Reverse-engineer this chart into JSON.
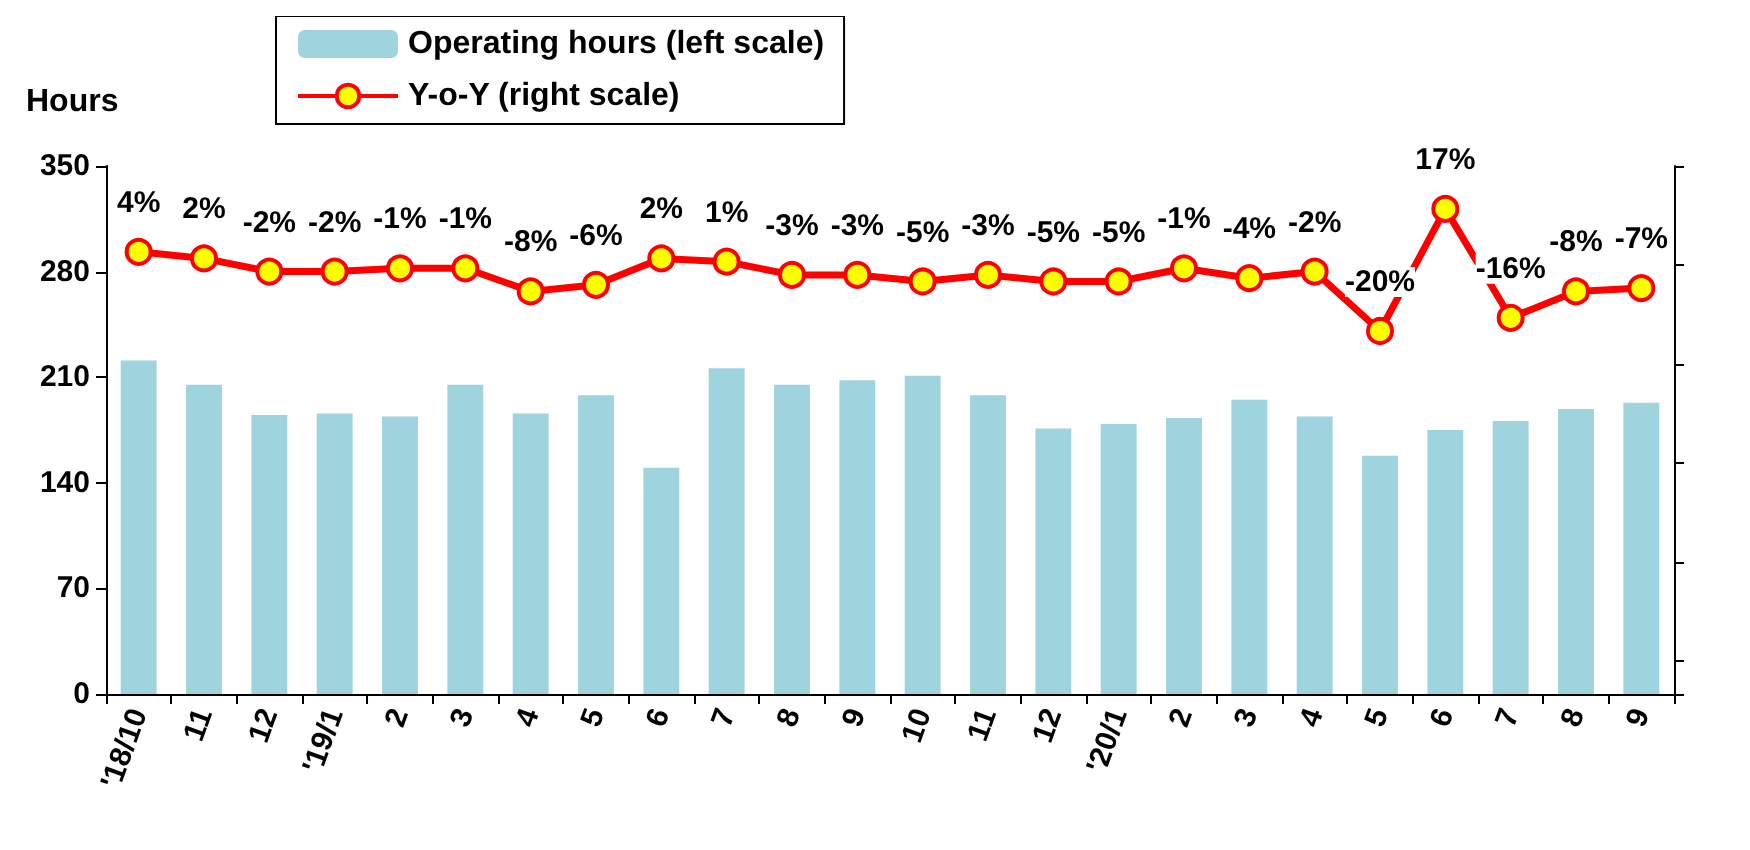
{
  "chart_data": {
    "type": "bar",
    "ylabel": "Hours",
    "categories": [
      "'18/10",
      "11",
      "12",
      "'19/1",
      "2",
      "3",
      "4",
      "5",
      "6",
      "7",
      "8",
      "9",
      "10",
      "11",
      "12",
      "'20/1",
      "2",
      "3",
      "4",
      "5",
      "6",
      "7",
      "8",
      "9"
    ],
    "series": [
      {
        "name": "Operating hours (left scale)",
        "type": "bar",
        "color": "#9fd3dd",
        "values": [
          221,
          205,
          185,
          186,
          184,
          205,
          186,
          198,
          150,
          216,
          205,
          208,
          211,
          198,
          176,
          179,
          183,
          195,
          184,
          158,
          175,
          181,
          189,
          193
        ]
      },
      {
        "name": "Y-o-Y (right scale)",
        "type": "line",
        "axis": "y2",
        "color": "#ff0000",
        "marker": "circle",
        "data_labels": true,
        "value_labels": [
          "4%",
          "2%",
          "-2%",
          "-2%",
          "-1%",
          "-1%",
          "-8%",
          "-6%",
          "2%",
          "1%",
          "-3%",
          "-3%",
          "-5%",
          "-3%",
          "-5%",
          "-5%",
          "-1%",
          "-4%",
          "-2%",
          "-20%",
          "17%",
          "-16%",
          "-8%",
          "-7%"
        ],
        "values": [
          4,
          2,
          -2,
          -2,
          -1,
          -1,
          -8,
          -6,
          2,
          1,
          -3,
          -3,
          -5,
          -3,
          -5,
          -5,
          -1,
          -4,
          -2,
          -20,
          17,
          -16,
          -8,
          -7
        ]
      }
    ],
    "ylim": [
      0,
      350
    ],
    "yticks": [
      0,
      70,
      140,
      210,
      280,
      350
    ],
    "y2lim": [
      -130,
      30
    ],
    "tick_labels": "xy",
    "legend": "top",
    "grid": false
  }
}
